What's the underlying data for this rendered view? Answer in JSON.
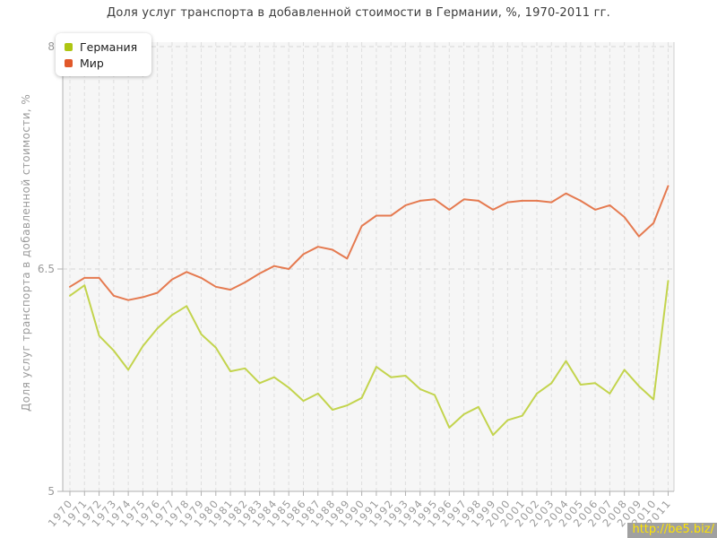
{
  "title": "Доля услуг транспорта в добавленной стоимости в Германии, %, 1970-2011 гг.",
  "watermark": "http://be5.biz/",
  "chart_data": {
    "type": "line",
    "x": [
      1970,
      1971,
      1972,
      1973,
      1974,
      1975,
      1976,
      1977,
      1978,
      1979,
      1980,
      1981,
      1982,
      1983,
      1984,
      1985,
      1986,
      1987,
      1988,
      1989,
      1990,
      1991,
      1992,
      1993,
      1994,
      1995,
      1996,
      1997,
      1998,
      1999,
      2000,
      2001,
      2002,
      2003,
      2004,
      2005,
      2006,
      2007,
      2008,
      2009,
      2010,
      2011
    ],
    "series": [
      {
        "name": "Германия",
        "color": "#aec613",
        "line_color": "#c3d44d",
        "values": [
          6.32,
          6.39,
          6.05,
          5.95,
          5.82,
          5.98,
          6.1,
          6.19,
          6.25,
          6.06,
          5.97,
          5.81,
          5.83,
          5.73,
          5.77,
          5.7,
          5.61,
          5.66,
          5.55,
          5.58,
          5.63,
          5.84,
          5.77,
          5.78,
          5.69,
          5.65,
          5.43,
          5.52,
          5.57,
          5.38,
          5.48,
          5.51,
          5.66,
          5.73,
          5.88,
          5.72,
          5.73,
          5.66,
          5.82,
          5.71,
          5.62,
          6.42
        ]
      },
      {
        "name": "Мир",
        "color": "#e1582a",
        "line_color": "#e57a50",
        "values": [
          6.38,
          6.44,
          6.44,
          6.32,
          6.29,
          6.31,
          6.34,
          6.43,
          6.48,
          6.44,
          6.38,
          6.36,
          6.41,
          6.47,
          6.52,
          6.5,
          6.6,
          6.65,
          6.63,
          6.57,
          6.79,
          6.86,
          6.86,
          6.93,
          6.96,
          6.97,
          6.9,
          6.97,
          6.96,
          6.9,
          6.95,
          6.96,
          6.96,
          6.95,
          7.01,
          6.96,
          6.9,
          6.93,
          6.85,
          6.72,
          6.81,
          7.06
        ]
      }
    ],
    "xlabel": "",
    "ylabel": "Доля услуг транспорта в добавленной стоимости, %",
    "ylim": [
      5,
      8
    ],
    "yticks": [
      5,
      6.5,
      8
    ],
    "grid": true,
    "legend_position": "top-left"
  }
}
